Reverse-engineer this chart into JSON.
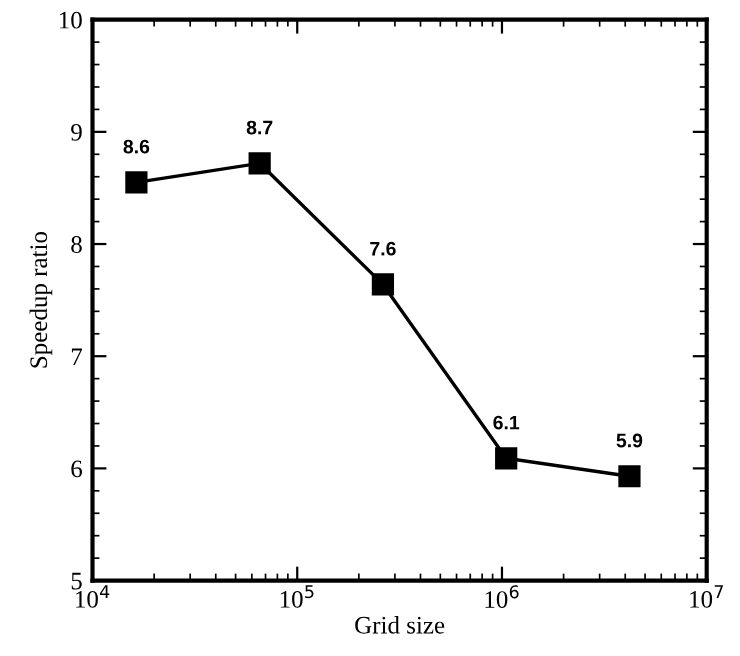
{
  "chart_data": {
    "type": "line",
    "xlabel": "Grid size",
    "ylabel": "Speedup ratio",
    "log": "x",
    "x": [
      16384,
      65536,
      262144,
      1048576,
      4194304
    ],
    "series": [
      {
        "color": "#000000",
        "values": [
          8.55,
          8.72,
          7.64,
          6.09,
          5.93
        ],
        "value_labels": [
          "8.6",
          "8.7",
          "7.6",
          "6.1",
          "5.9"
        ]
      }
    ],
    "marker": "square",
    "line_style": "solid",
    "xlim": [
      10000,
      10000000
    ],
    "xticks": [
      {
        "value": 10000,
        "label": "10$^{4}$"
      },
      {
        "value": 100000,
        "label": "10$^{5}$"
      },
      {
        "value": 1000000,
        "label": "10$^{6}$"
      },
      {
        "value": 10000000,
        "label": "10$^{7}$"
      }
    ],
    "ylim": [
      5,
      10
    ],
    "yticks": [
      5,
      6,
      7,
      8,
      9,
      10
    ],
    "grid": false,
    "legend": false
  }
}
